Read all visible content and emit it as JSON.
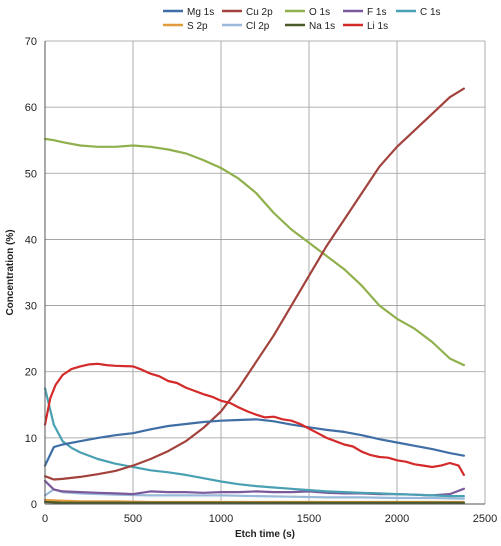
{
  "chart_data": {
    "type": "line",
    "title": "",
    "xlabel": "Etch time (s)",
    "ylabel": "Concentration (%)",
    "xlim": [
      0,
      2500
    ],
    "ylim": [
      0,
      70
    ],
    "xticks": [
      "0",
      "500",
      "1000",
      "1500",
      "2000",
      "2500"
    ],
    "yticks": [
      "0",
      "10",
      "20",
      "30",
      "40",
      "50",
      "60",
      "70"
    ],
    "grid": true,
    "legend_position": "top",
    "series": [
      {
        "name": "Mg 1s",
        "color": "#3f6fa5",
        "x": [
          0,
          50,
          100,
          200,
          300,
          400,
          500,
          600,
          700,
          800,
          900,
          1000,
          1100,
          1200,
          1300,
          1400,
          1500,
          1600,
          1700,
          1800,
          1900,
          2000,
          2100,
          2200,
          2300,
          2380
        ],
        "y": [
          5.8,
          8.6,
          9.0,
          9.5,
          10.0,
          10.4,
          10.7,
          11.3,
          11.8,
          12.1,
          12.4,
          12.6,
          12.7,
          12.8,
          12.5,
          12.0,
          11.6,
          11.2,
          10.9,
          10.4,
          9.8,
          9.3,
          8.8,
          8.3,
          7.7,
          7.3
        ]
      },
      {
        "name": "Cu 2p",
        "color": "#a2423c",
        "x": [
          0,
          50,
          100,
          200,
          300,
          400,
          500,
          600,
          700,
          800,
          900,
          1000,
          1100,
          1200,
          1300,
          1400,
          1500,
          1600,
          1700,
          1800,
          1900,
          2000,
          2100,
          2200,
          2300,
          2380
        ],
        "y": [
          4.2,
          3.7,
          3.8,
          4.1,
          4.5,
          5.0,
          5.8,
          6.8,
          8.0,
          9.5,
          11.5,
          14.0,
          17.5,
          21.5,
          25.5,
          30.0,
          34.5,
          39.0,
          43.0,
          47.0,
          51.0,
          54.0,
          56.5,
          59.0,
          61.5,
          62.8
        ]
      },
      {
        "name": "O 1s",
        "color": "#8fb04c",
        "x": [
          0,
          50,
          100,
          200,
          300,
          400,
          500,
          600,
          700,
          800,
          900,
          1000,
          1100,
          1200,
          1300,
          1400,
          1500,
          1600,
          1700,
          1800,
          1900,
          2000,
          2100,
          2200,
          2300,
          2380
        ],
        "y": [
          55.2,
          55.0,
          54.7,
          54.2,
          54.0,
          54.0,
          54.2,
          54.0,
          53.6,
          53.0,
          52.0,
          50.8,
          49.2,
          47.0,
          44.0,
          41.5,
          39.5,
          37.5,
          35.5,
          33.0,
          30.0,
          28.0,
          26.5,
          24.5,
          22.0,
          21.0
        ]
      },
      {
        "name": "F 1s",
        "color": "#7b5a9c",
        "x": [
          0,
          50,
          100,
          200,
          300,
          400,
          500,
          600,
          700,
          800,
          900,
          1000,
          1100,
          1200,
          1300,
          1400,
          1500,
          1600,
          1700,
          1800,
          1900,
          2000,
          2100,
          2200,
          2300,
          2380
        ],
        "y": [
          3.5,
          2.2,
          1.9,
          1.8,
          1.7,
          1.6,
          1.5,
          1.9,
          1.8,
          1.8,
          1.7,
          1.8,
          1.8,
          1.9,
          1.8,
          1.8,
          1.9,
          1.7,
          1.6,
          1.6,
          1.5,
          1.5,
          1.4,
          1.3,
          1.5,
          2.3
        ]
      },
      {
        "name": "C 1s",
        "color": "#4aa0b3",
        "x": [
          0,
          50,
          100,
          150,
          200,
          300,
          400,
          500,
          600,
          700,
          800,
          900,
          1000,
          1100,
          1200,
          1300,
          1400,
          1500,
          1600,
          1700,
          1800,
          1900,
          2000,
          2100,
          2200,
          2300,
          2380
        ],
        "y": [
          17.5,
          12.0,
          9.5,
          8.5,
          7.8,
          6.8,
          6.1,
          5.6,
          5.1,
          4.8,
          4.4,
          3.9,
          3.4,
          3.0,
          2.7,
          2.5,
          2.3,
          2.1,
          1.9,
          1.8,
          1.7,
          1.6,
          1.5,
          1.4,
          1.3,
          1.2,
          1.2
        ]
      },
      {
        "name": "S 2p",
        "color": "#e09a3c",
        "x": [
          0,
          100,
          200,
          400,
          600,
          800,
          1000,
          1200,
          1400,
          1600,
          1800,
          2000,
          2200,
          2380
        ],
        "y": [
          0.6,
          0.5,
          0.4,
          0.4,
          0.3,
          0.3,
          0.3,
          0.3,
          0.3,
          0.3,
          0.3,
          0.3,
          0.3,
          0.3
        ]
      },
      {
        "name": "Cl 2p",
        "color": "#9ab8d8",
        "x": [
          0,
          50,
          100,
          200,
          400,
          600,
          800,
          1000,
          1200,
          1400,
          1600,
          1800,
          2000,
          2200,
          2380
        ],
        "y": [
          1.3,
          2.2,
          1.8,
          1.6,
          1.4,
          1.3,
          1.3,
          1.3,
          1.2,
          1.1,
          1.0,
          1.0,
          0.9,
          0.9,
          0.8
        ]
      },
      {
        "name": "Na 1s",
        "color": "#4a5a28",
        "x": [
          0,
          100,
          200,
          400,
          600,
          800,
          1000,
          1200,
          1400,
          1600,
          1800,
          2000,
          2200,
          2380
        ],
        "y": [
          0.3,
          0.2,
          0.2,
          0.2,
          0.2,
          0.2,
          0.2,
          0.2,
          0.2,
          0.2,
          0.2,
          0.2,
          0.2,
          0.2
        ]
      },
      {
        "name": "Li 1s",
        "color": "#d42a2a",
        "x": [
          0,
          30,
          60,
          100,
          150,
          200,
          250,
          300,
          350,
          400,
          500,
          550,
          600,
          650,
          700,
          750,
          800,
          850,
          900,
          950,
          1000,
          1050,
          1100,
          1150,
          1200,
          1250,
          1300,
          1350,
          1400,
          1450,
          1500,
          1550,
          1600,
          1650,
          1700,
          1750,
          1800,
          1850,
          1900,
          1950,
          2000,
          2050,
          2100,
          2150,
          2200,
          2250,
          2300,
          2350,
          2380
        ],
        "y": [
          12.0,
          16.0,
          18.0,
          19.5,
          20.4,
          20.8,
          21.1,
          21.2,
          21.0,
          20.9,
          20.8,
          20.3,
          19.7,
          19.3,
          18.6,
          18.3,
          17.6,
          17.1,
          16.6,
          16.2,
          15.6,
          15.3,
          14.6,
          14.0,
          13.5,
          13.1,
          13.2,
          12.8,
          12.6,
          12.1,
          11.4,
          10.7,
          10.0,
          9.5,
          9.0,
          8.7,
          7.9,
          7.4,
          7.1,
          7.0,
          6.6,
          6.4,
          6.0,
          5.8,
          5.6,
          5.8,
          6.2,
          5.8,
          4.4
        ]
      }
    ]
  }
}
